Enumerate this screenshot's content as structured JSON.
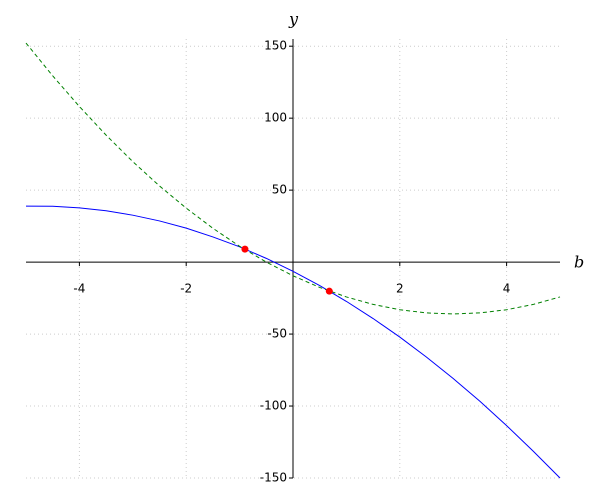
{
  "chart_data": {
    "type": "line",
    "xlabel": "b",
    "ylabel": "y",
    "xlim": [
      -5,
      5
    ],
    "ylim": [
      -150,
      155
    ],
    "xticks": [
      -4,
      -2,
      2,
      4
    ],
    "yticks": [
      -150,
      -100,
      -50,
      50,
      100,
      150
    ],
    "grid": true,
    "series": [
      {
        "color": "#0000ff",
        "style": "solid",
        "x": [
          -5,
          -4.5,
          -4,
          -3.5,
          -3,
          -2.5,
          -2,
          -1.5,
          -1,
          -0.5,
          0,
          0.5,
          1,
          1.5,
          2,
          2.5,
          3,
          3.5,
          4,
          4.5,
          5
        ],
        "values": [
          38.9,
          38.8,
          37.7,
          35.7,
          32.6,
          28.6,
          23.6,
          17.5,
          10.6,
          2.6,
          -6.4,
          -16.3,
          -27.3,
          -39.2,
          -52.1,
          -66.0,
          -80.9,
          -96.7,
          -113.6,
          -131.4,
          -150
        ]
      },
      {
        "color": "#008000",
        "style": "dashed",
        "x": [
          -5,
          -4.5,
          -4,
          -3.5,
          -3,
          -2.5,
          -2,
          -1.5,
          -1,
          -0.5,
          0,
          0.5,
          1,
          1.5,
          2,
          2.5,
          3,
          3.5,
          4,
          4.5,
          5
        ],
        "values": [
          152.2,
          129.4,
          108.1,
          88.2,
          69.8,
          52.9,
          37.5,
          23.5,
          11.0,
          0.0,
          -9.5,
          -17.6,
          -24.2,
          -29.4,
          -33.1,
          -35.3,
          -36,
          -35.3,
          -33.1,
          -29.4,
          -24.2
        ]
      },
      {
        "color": "#ff0000",
        "style": "points",
        "x": [
          -0.9,
          0.68
        ],
        "values": [
          9.0,
          -20.2
        ]
      }
    ]
  }
}
